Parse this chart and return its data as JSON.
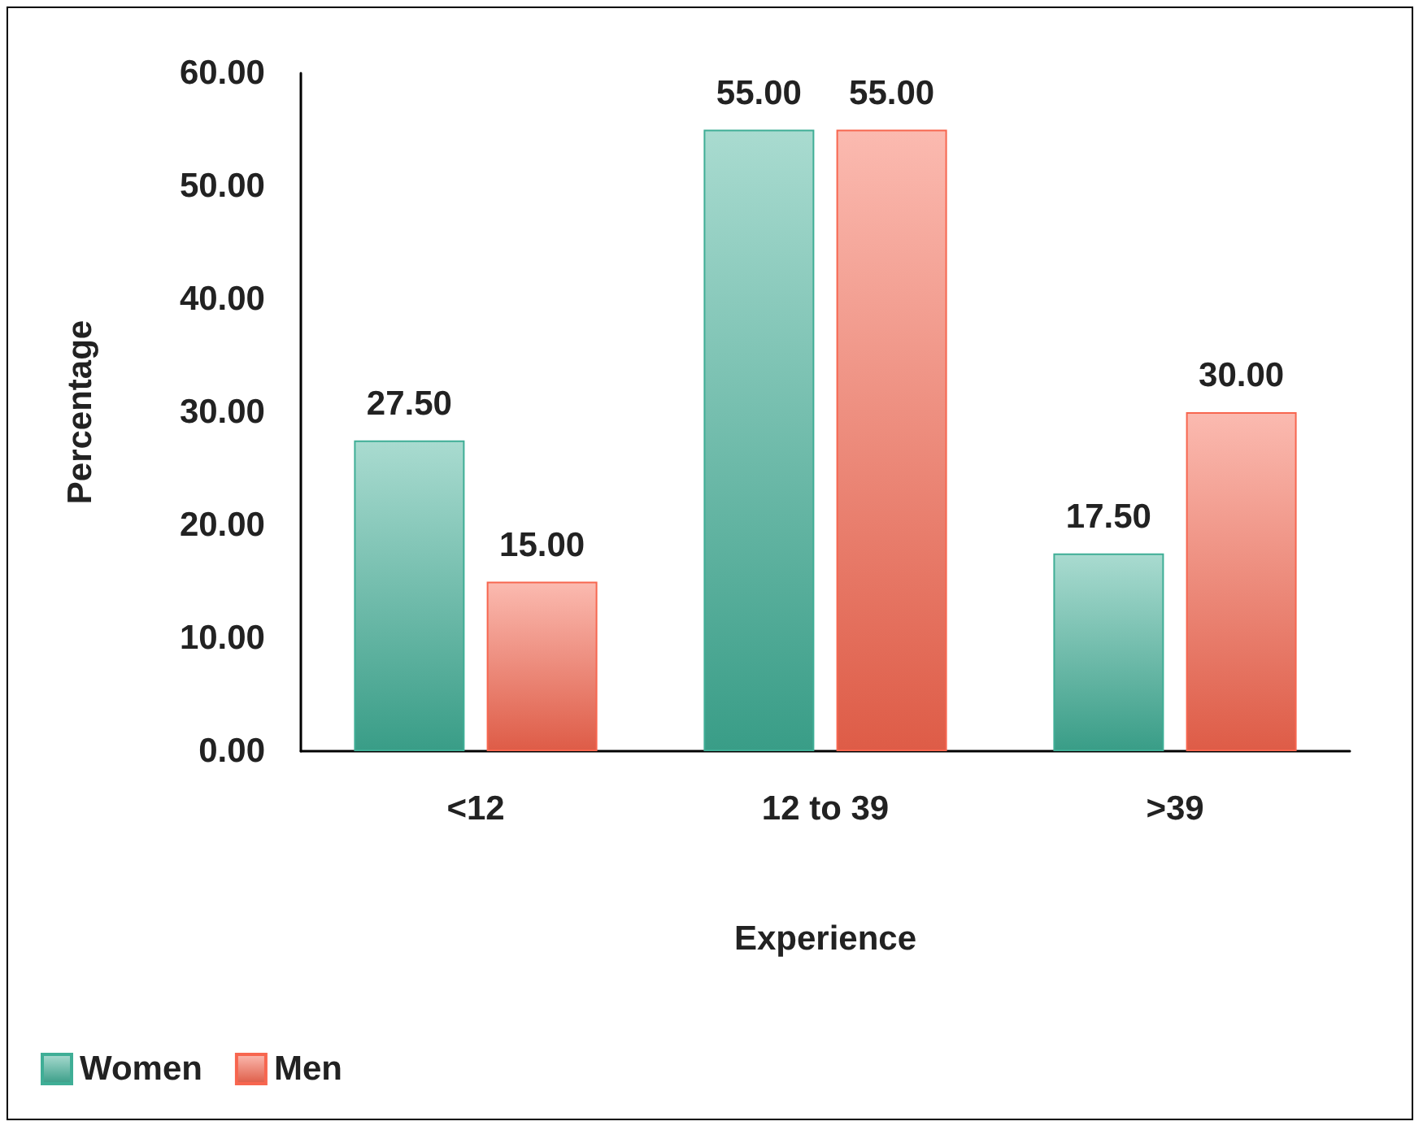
{
  "chart_data": {
    "type": "bar",
    "xlabel": "Experience",
    "ylabel": "Percentage",
    "categories": [
      "<12",
      "12 to 39",
      ">39"
    ],
    "series": [
      {
        "name": "Women",
        "color": "#3fae96",
        "values": [
          27.5,
          55,
          17.5
        ],
        "value_labels": [
          "27.50",
          "55.00",
          "17.50"
        ]
      },
      {
        "name": "Men",
        "color": "#f7664f",
        "values": [
          15,
          55,
          30
        ],
        "value_labels": [
          "15.00",
          "55.00",
          "30.00"
        ]
      }
    ],
    "ylim": [
      0,
      60
    ],
    "yticks": [
      {
        "value": 0,
        "label": "0.00"
      },
      {
        "value": 10,
        "label": "10.00"
      },
      {
        "value": 20,
        "label": "20.00"
      },
      {
        "value": 30,
        "label": "30.00"
      },
      {
        "value": 40,
        "label": "40.00"
      },
      {
        "value": 50,
        "label": "50.00"
      },
      {
        "value": 60,
        "label": "60.00"
      }
    ],
    "grid": false,
    "legend": "bottom left"
  }
}
